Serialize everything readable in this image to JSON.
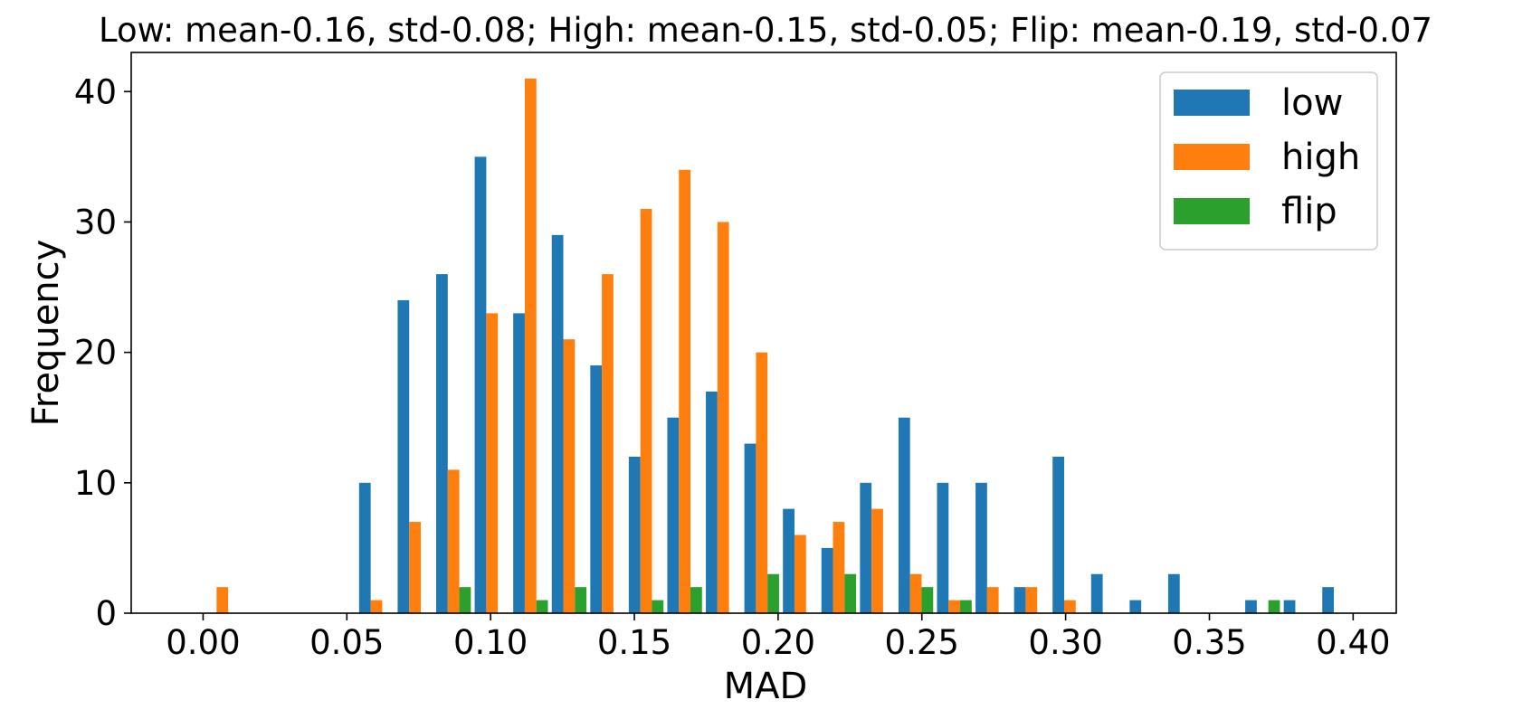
{
  "chart_data": {
    "type": "bar",
    "title": "Low: mean-0.16, std-0.08; High: mean-0.15, std-0.05; Flip: mean-0.19, std-0.07",
    "xlabel": "MAD",
    "ylabel": "Frequency",
    "xlim": [
      -0.025,
      0.415
    ],
    "ylim": [
      0,
      43
    ],
    "xticks": [
      "0.00",
      "0.05",
      "0.10",
      "0.15",
      "0.20",
      "0.25",
      "0.30",
      "0.35",
      "0.40"
    ],
    "yticks": [
      "0",
      "10",
      "20",
      "30",
      "40"
    ],
    "legend_position": "top-right",
    "grid": false,
    "bin_edges": [
      0.0,
      0.0134,
      0.0268,
      0.0402,
      0.0536,
      0.067,
      0.0804,
      0.0938,
      0.1072,
      0.1206,
      0.134,
      0.1474,
      0.1608,
      0.1742,
      0.1876,
      0.201,
      0.2144,
      0.2278,
      0.2412,
      0.2546,
      0.268,
      0.2814,
      0.2948,
      0.3082,
      0.3216,
      0.335,
      0.3484,
      0.3618,
      0.3752,
      0.3886,
      0.402
    ],
    "series": [
      {
        "name": "low",
        "color": "#1f77b4",
        "values": [
          0,
          0,
          0,
          0,
          10,
          24,
          26,
          35,
          23,
          29,
          19,
          12,
          15,
          17,
          13,
          8,
          5,
          10,
          15,
          10,
          10,
          2,
          12,
          3,
          1,
          3,
          0,
          1,
          1,
          2
        ]
      },
      {
        "name": "high",
        "color": "#ff7f0e",
        "values": [
          2,
          0,
          0,
          0,
          1,
          7,
          11,
          23,
          41,
          21,
          26,
          31,
          34,
          30,
          20,
          6,
          7,
          8,
          3,
          1,
          2,
          2,
          1,
          0,
          0,
          0,
          0,
          0,
          0,
          0
        ]
      },
      {
        "name": "flip",
        "color": "#2ca02c",
        "values": [
          0,
          0,
          0,
          0,
          0,
          0,
          2,
          0,
          1,
          2,
          0,
          1,
          2,
          0,
          3,
          0,
          3,
          0,
          2,
          1,
          0,
          0,
          0,
          0,
          0,
          0,
          0,
          1,
          0,
          0
        ]
      }
    ]
  }
}
